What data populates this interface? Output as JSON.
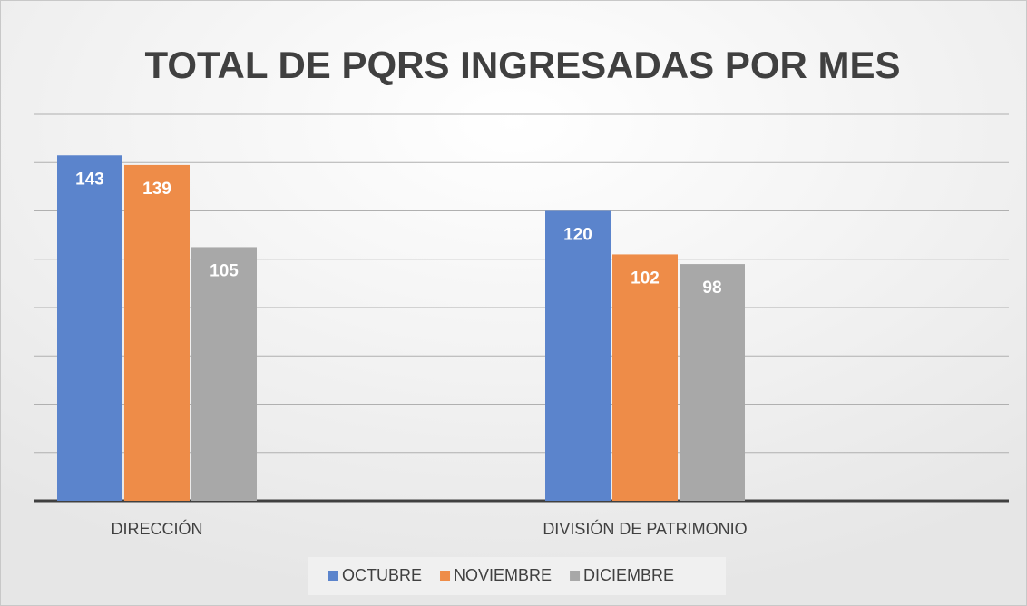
{
  "chart_data": {
    "type": "bar",
    "title": "TOTAL DE PQRS INGRESADAS POR MES",
    "categories": [
      "DIRECCIÓN",
      "DIVISIÓN DE PATRIMONIO"
    ],
    "series": [
      {
        "name": "OCTUBRE",
        "color": "#5b84cc",
        "values": [
          143,
          120
        ]
      },
      {
        "name": "NOVIEMBRE",
        "color": "#ee8c48",
        "values": [
          139,
          102
        ]
      },
      {
        "name": "DICIEMBRE",
        "color": "#a8a8a8",
        "values": [
          105,
          98
        ]
      }
    ],
    "ylim": [
      0,
      160
    ],
    "yticks": [
      0,
      20,
      40,
      60,
      80,
      100,
      120,
      140,
      160
    ],
    "grid": true,
    "legend": "bottom"
  }
}
